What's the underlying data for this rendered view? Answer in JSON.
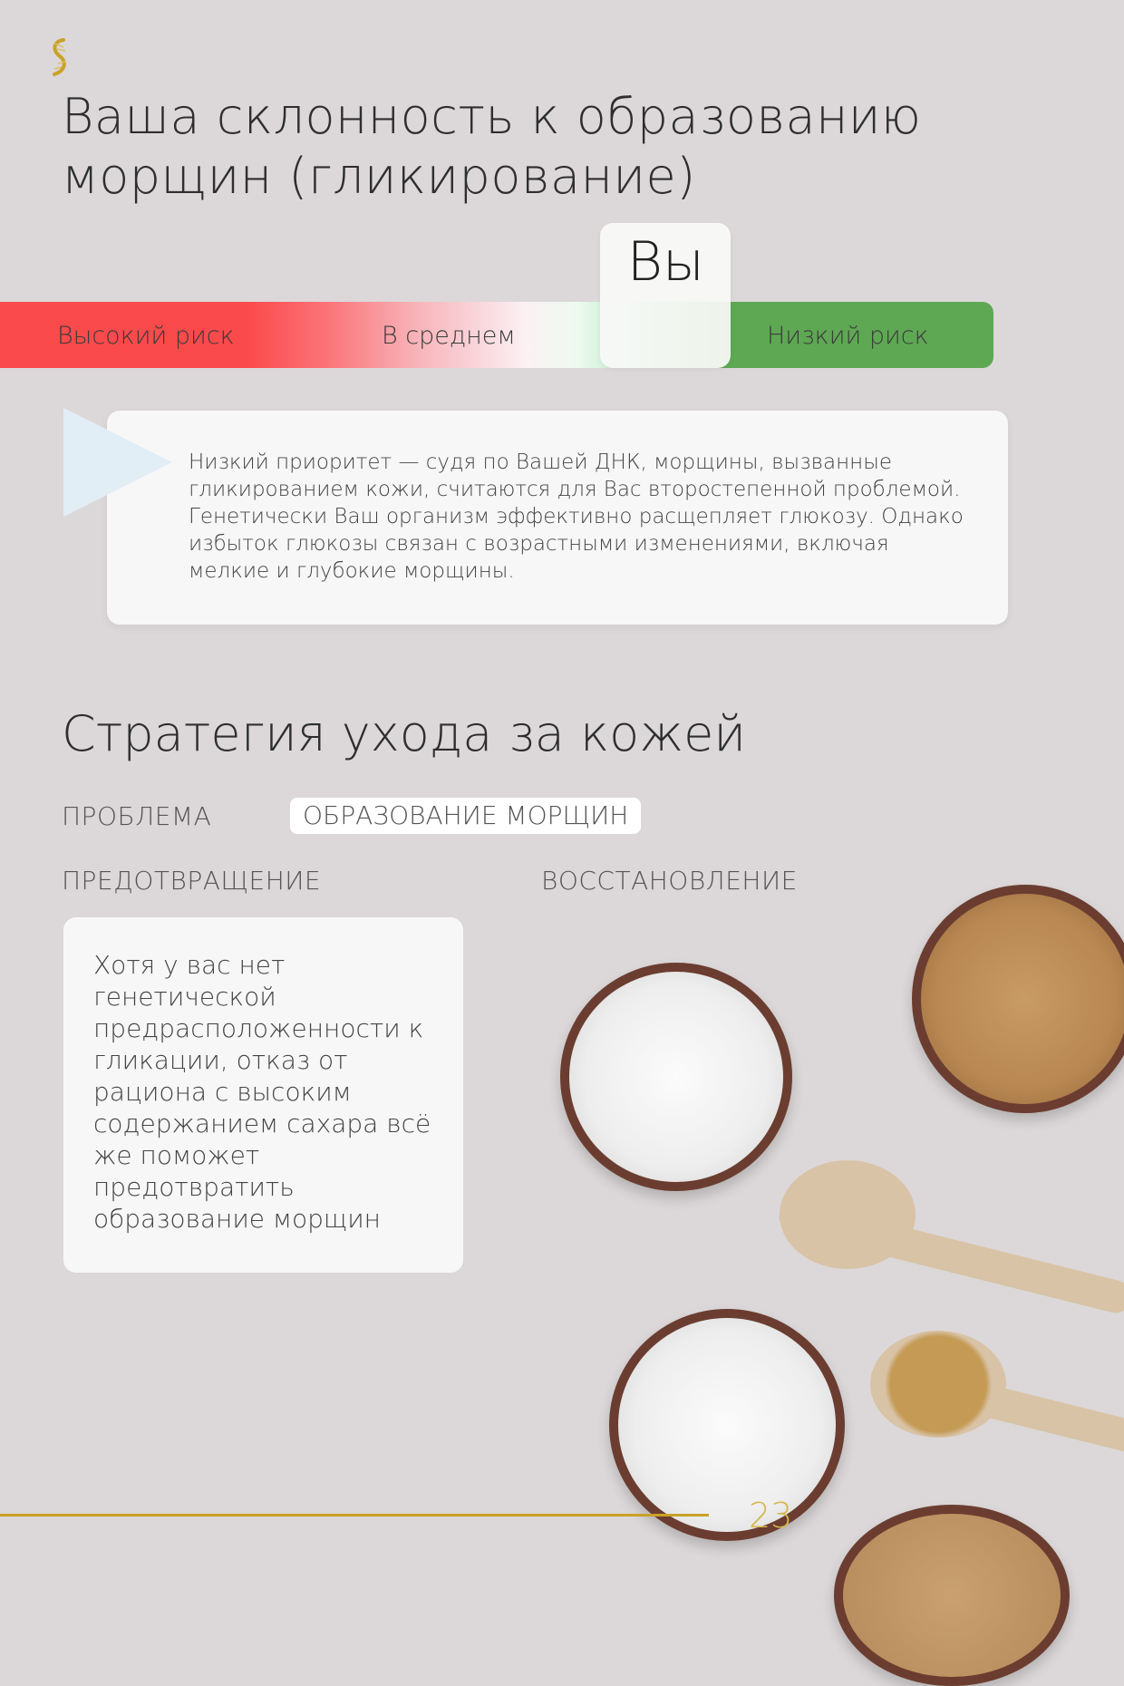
{
  "title": "Ваша склонность к образованию морщин (гликирование)",
  "risk_scale": {
    "labels": [
      "Высокий риск",
      "В среднем",
      "Низкий риск"
    ],
    "marker_label": "Вы",
    "marker_position_fraction": 0.67,
    "colors": {
      "high": "#fb4a4c",
      "low": "#5ea853"
    }
  },
  "info": {
    "text": "Низкий приоритет — судя по Вашей ДНК, морщины, вызванные гликированием кожи, считаются для Вас второстепенной проблемой. Генетически Ваш организм эффективно расщепляет глюкозу. Однако избыток глюкозы связан с возрастными изменениями, включая мелкие и глубокие морщины."
  },
  "strategy": {
    "heading": "Стратегия ухода за кожей",
    "problem_label": "ПРОБЛЕМА",
    "problem_value": "ОБРАЗОВАНИЕ МОРЩИН",
    "prevention_label": "ПРЕДОТВРАЩЕНИЕ",
    "recovery_label": "ВОССТАНОВЛЕНИЕ",
    "prevention_text": "Хотя у вас нет генетической предрасположенности к гликации, отказ от рациона с высоким содержанием сахара всё же поможет предотвратить образование морщин"
  },
  "footer": {
    "page_number": "23",
    "accent_color": "#c9a227"
  },
  "icons": {
    "logo": "dna-helix-logo"
  }
}
